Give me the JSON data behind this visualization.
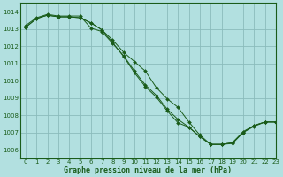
{
  "title": "Graphe pression niveau de la mer (hPa)",
  "bg_color": "#b2e0e0",
  "grid_color": "#8bbcbc",
  "line_color": "#1a5c1a",
  "marker_color": "#1a5c1a",
  "xlim": [
    -0.5,
    23
  ],
  "ylim": [
    1005.5,
    1014.5
  ],
  "yticks": [
    1006,
    1007,
    1008,
    1009,
    1010,
    1011,
    1012,
    1013,
    1014
  ],
  "xticks": [
    0,
    1,
    2,
    3,
    4,
    5,
    6,
    7,
    8,
    9,
    10,
    11,
    12,
    13,
    14,
    15,
    16,
    17,
    18,
    19,
    20,
    21,
    22,
    23
  ],
  "series": [
    [
      1013.2,
      1013.65,
      1013.85,
      1013.75,
      1013.75,
      1013.75,
      1013.05,
      1012.85,
      1012.15,
      1011.45,
      1010.55,
      1009.75,
      1009.15,
      1008.35,
      1007.75,
      1007.3,
      1006.75,
      1006.3,
      1006.3,
      1006.4,
      1007.0,
      1007.4,
      1007.6,
      1007.6
    ],
    [
      1013.1,
      1013.6,
      1013.8,
      1013.7,
      1013.7,
      1013.65,
      1013.35,
      1012.95,
      1012.35,
      1011.65,
      1011.1,
      1010.55,
      1009.6,
      1008.95,
      1008.45,
      1007.6,
      1006.85,
      1006.3,
      1006.3,
      1006.35,
      1007.0,
      1007.35,
      1007.6,
      1007.6
    ],
    [
      1013.1,
      1013.6,
      1013.8,
      1013.7,
      1013.7,
      1013.65,
      1013.35,
      1012.95,
      1012.2,
      1011.4,
      1010.45,
      1009.65,
      1009.05,
      1008.25,
      1007.55,
      1007.3,
      1006.75,
      1006.3,
      1006.3,
      1006.4,
      1007.05,
      1007.4,
      1007.6,
      1007.6
    ]
  ]
}
